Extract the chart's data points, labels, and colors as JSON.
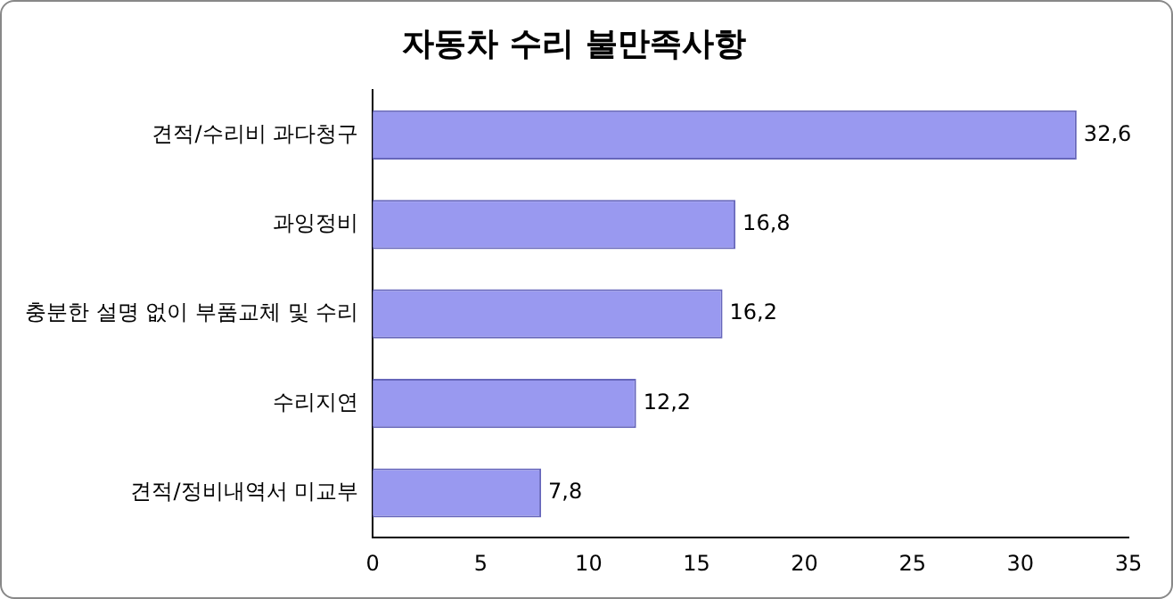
{
  "chart_data": {
    "type": "bar",
    "orientation": "horizontal",
    "title": "자동차 수리 불만족사항",
    "categories": [
      "견적/수리비 과다청구",
      "과잉정비",
      "충분한 설명 없이 부품교체 및 수리",
      "수리지연",
      "견적/정비내역서 미교부"
    ],
    "values": [
      32.6,
      16.8,
      16.2,
      12.2,
      7.8
    ],
    "value_labels": [
      "32,6",
      "16,8",
      "16,2",
      "12,2",
      "7,8"
    ],
    "color": "#9999f0",
    "xlim": [
      0,
      35
    ],
    "xticks": [
      0,
      5,
      10,
      15,
      20,
      25,
      30,
      35
    ],
    "grid": false,
    "legend": false
  }
}
